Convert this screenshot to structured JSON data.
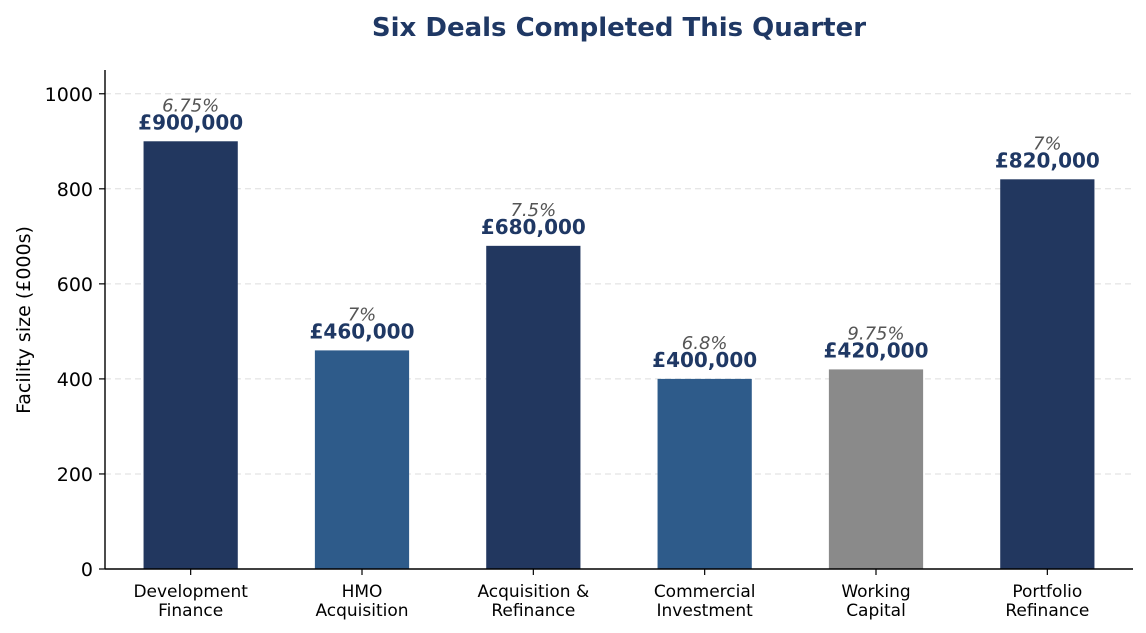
{
  "chart_data": {
    "type": "bar",
    "title": "Six Deals Completed This Quarter",
    "xlabel": "",
    "ylabel": "Facility size (£000s)",
    "ylim": [
      0,
      1050
    ],
    "yticks": [
      0,
      200,
      400,
      600,
      800,
      1000
    ],
    "grid": "y-dashed",
    "categories": [
      [
        "Development",
        "Finance"
      ],
      [
        "HMO",
        "Acquisition"
      ],
      [
        "Acquisition &",
        "Refinance"
      ],
      [
        "Commercial",
        "Investment"
      ],
      [
        "Working",
        "Capital"
      ],
      [
        "Portfolio",
        "Refinance"
      ]
    ],
    "values": [
      900,
      460,
      680,
      400,
      420,
      820
    ],
    "value_labels": [
      "£900,000",
      "£460,000",
      "£680,000",
      "£400,000",
      "£420,000",
      "£820,000"
    ],
    "rate_labels": [
      "6.75%",
      "7%",
      "7.5%",
      "6.8%",
      "9.75%",
      "7%"
    ],
    "bar_colors": [
      "#22375f",
      "#2e5b8a",
      "#22375f",
      "#2e5b8a",
      "#8a8a8a",
      "#22375f"
    ]
  },
  "colors": {
    "title": "#1f3864",
    "value_label": "#1f3864",
    "rate_label": "#555555",
    "axis": "#000000",
    "grid": "#dddddd"
  }
}
